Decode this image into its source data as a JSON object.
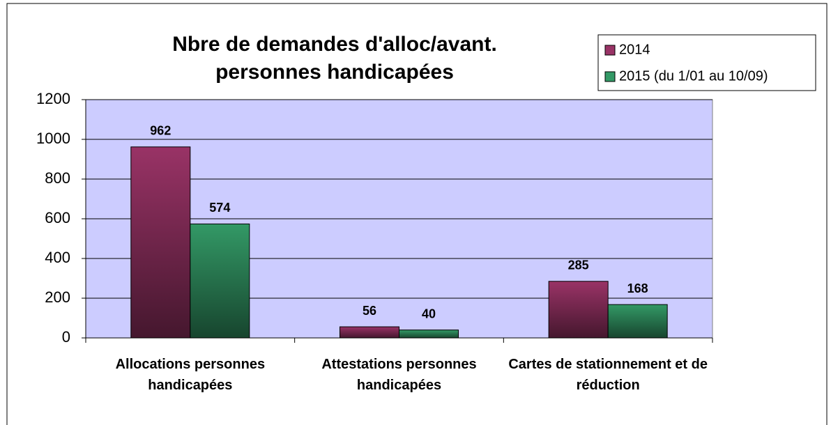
{
  "chart_data": {
    "type": "bar",
    "title": "Nbre de demandes d'alloc/avant. personnes handicapées",
    "categories": [
      "Allocations personnes handicapées",
      "Attestations personnes handicapées",
      "Cartes de stationnement et de réduction"
    ],
    "series": [
      {
        "name": "2014",
        "color": "#993366",
        "values": [
          962,
          56,
          285
        ]
      },
      {
        "name": "2015 (du 1/01 au 10/09)",
        "color": "#339966",
        "values": [
          574,
          40,
          168
        ]
      }
    ],
    "ylim": [
      0,
      1200
    ],
    "yticks": [
      0,
      200,
      400,
      600,
      800,
      1000,
      1200
    ],
    "grid": true,
    "legend": "top-right"
  }
}
